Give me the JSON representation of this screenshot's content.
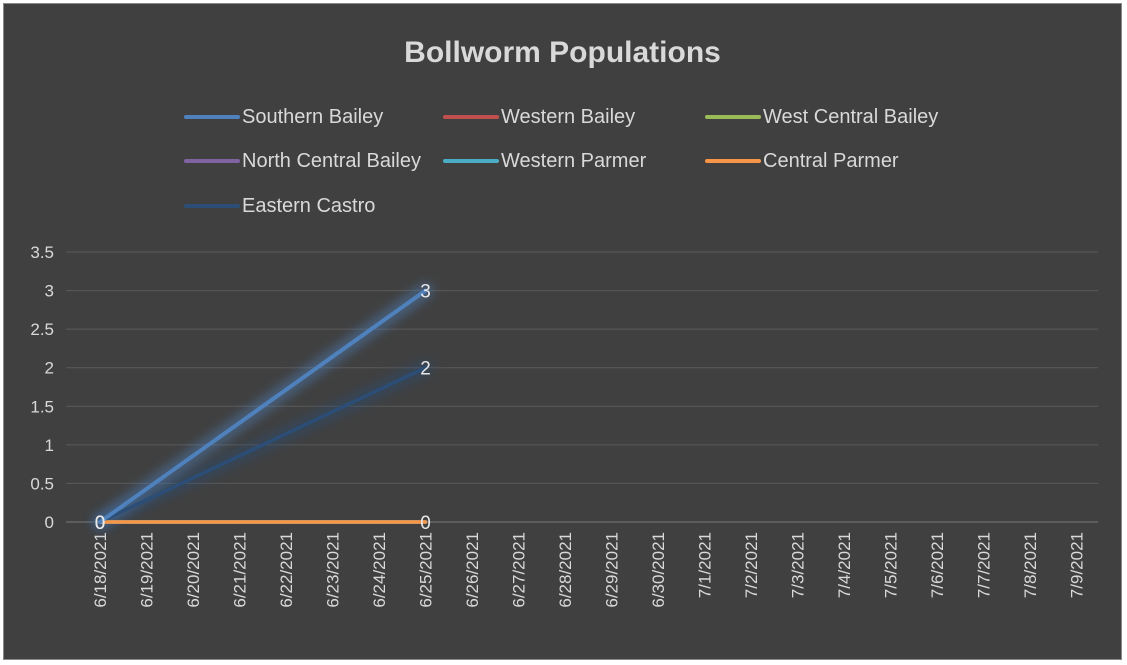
{
  "chart_data": {
    "type": "line",
    "title": "Bollworm Populations",
    "xlabel": "",
    "ylabel": "",
    "ylim": [
      0,
      3.5
    ],
    "y_ticks": [
      "0",
      "0.5",
      "1",
      "1.5",
      "2",
      "2.5",
      "3",
      "3.5"
    ],
    "categories": [
      "6/18/2021",
      "6/19/2021",
      "6/20/2021",
      "6/21/2021",
      "6/22/2021",
      "6/23/2021",
      "6/24/2021",
      "6/25/2021",
      "6/26/2021",
      "6/27/2021",
      "6/28/2021",
      "6/29/2021",
      "6/30/2021",
      "7/1/2021",
      "7/2/2021",
      "7/3/2021",
      "7/4/2021",
      "7/5/2021",
      "7/6/2021",
      "7/7/2021",
      "7/8/2021",
      "7/9/2021"
    ],
    "grid": true,
    "legend_position": "top",
    "series": [
      {
        "name": "Southern Bailey",
        "color": "#4f81bd",
        "points": [
          {
            "x": "6/18/2021",
            "y": 0
          },
          {
            "x": "6/25/2021",
            "y": 3
          }
        ],
        "labels": [
          "0",
          "3"
        ]
      },
      {
        "name": "Western Bailey",
        "color": "#c0504d",
        "points": [
          {
            "x": "6/18/2021",
            "y": 0
          },
          {
            "x": "6/25/2021",
            "y": 0
          }
        ],
        "labels": []
      },
      {
        "name": "West Central Bailey",
        "color": "#9bbb59",
        "points": [
          {
            "x": "6/18/2021",
            "y": 0
          },
          {
            "x": "6/25/2021",
            "y": 0
          }
        ],
        "labels": []
      },
      {
        "name": "North Central Bailey",
        "color": "#8064a2",
        "points": [
          {
            "x": "6/18/2021",
            "y": 0
          },
          {
            "x": "6/25/2021",
            "y": 0
          }
        ],
        "labels": []
      },
      {
        "name": "Western Parmer",
        "color": "#4bacc6",
        "points": [
          {
            "x": "6/18/2021",
            "y": 0
          },
          {
            "x": "6/25/2021",
            "y": 0
          }
        ],
        "labels": []
      },
      {
        "name": "Central Parmer",
        "color": "#f79646",
        "points": [
          {
            "x": "6/18/2021",
            "y": 0
          },
          {
            "x": "6/25/2021",
            "y": 0
          }
        ],
        "labels": [
          "0",
          "0"
        ]
      },
      {
        "name": "Eastern Castro",
        "color": "#2c4d75",
        "points": [
          {
            "x": "6/18/2021",
            "y": 0
          },
          {
            "x": "6/25/2021",
            "y": 2
          }
        ],
        "labels": [
          "0",
          "2"
        ]
      }
    ]
  }
}
